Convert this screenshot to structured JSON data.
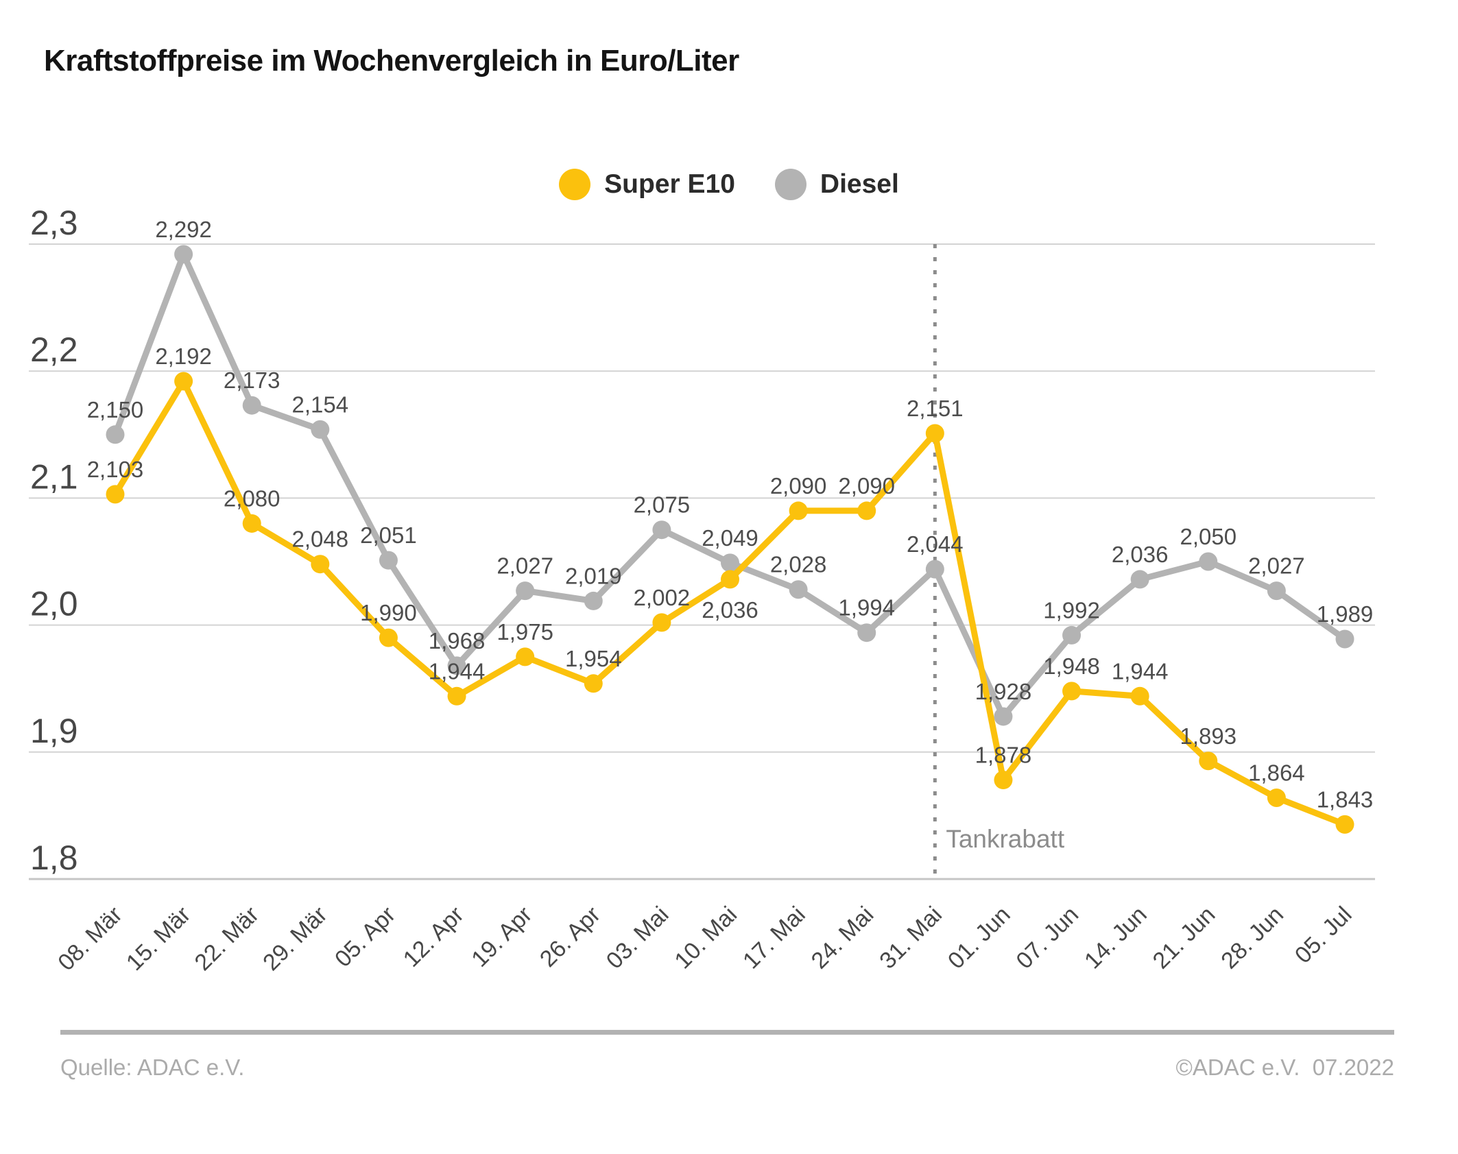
{
  "title": "Kraftstoffpreise im Wochenvergleich in Euro/Liter",
  "legend": {
    "items": [
      {
        "label": "Super E10",
        "color": "#FBC10D"
      },
      {
        "label": "Diesel",
        "color": "#B3B3B3"
      }
    ]
  },
  "annotation": {
    "label": "Tankrabatt",
    "category": "31. Mai",
    "category_index": 12,
    "line_color": "#8C8C8C",
    "label_color": "#8C8C8C"
  },
  "footer": {
    "source": "Quelle: ADAC e.V.",
    "copyright": "©ADAC e.V.  07.2022"
  },
  "chart_data": {
    "type": "line",
    "title": "Kraftstoffpreise im Wochenvergleich in Euro/Liter",
    "unit": "Euro/Liter",
    "grid": true,
    "legend_position": "top-center",
    "ylim": [
      1.8,
      2.3
    ],
    "yticks": [
      {
        "label": "2,3",
        "value": 2.3
      },
      {
        "label": "2,2",
        "value": 2.2
      },
      {
        "label": "2,1",
        "value": 2.1
      },
      {
        "label": "2,0",
        "value": 2.0
      },
      {
        "label": "1,9",
        "value": 1.9
      },
      {
        "label": "1,8",
        "value": 1.8
      }
    ],
    "categories": [
      "08. Mär",
      "15. Mär",
      "22. Mär",
      "29. Mär",
      "05. Apr",
      "12. Apr",
      "19. Apr",
      "26. Apr",
      "03. Mai",
      "10. Mai",
      "17. Mai",
      "24. Mai",
      "31. Mai",
      "01. Jun",
      "07. Jun",
      "14. Jun",
      "21. Jun",
      "28. Jun",
      "05. Jul"
    ],
    "series": [
      {
        "name": "Super E10",
        "color": "#FBC10D",
        "values": [
          2.103,
          2.192,
          2.08,
          2.048,
          1.99,
          1.944,
          1.975,
          1.954,
          2.002,
          2.036,
          2.09,
          2.09,
          2.151,
          1.878,
          1.948,
          1.944,
          1.893,
          1.864,
          1.843
        ],
        "labels": [
          "2,103",
          "2,192",
          "2,080",
          "2,048",
          "1,990",
          "1,944",
          "1,975",
          "1,954",
          "2,002",
          "2,036",
          "2,090",
          "2,090",
          "2,151",
          "1,878",
          "1,948",
          "1,944",
          "1,893",
          "1,864",
          "1,843"
        ],
        "label_below_indexes": [
          9
        ]
      },
      {
        "name": "Diesel",
        "color": "#B3B3B3",
        "values": [
          2.15,
          2.292,
          2.173,
          2.154,
          2.051,
          1.968,
          2.027,
          2.019,
          2.075,
          2.049,
          2.028,
          1.994,
          2.044,
          1.928,
          1.992,
          2.036,
          2.05,
          2.027,
          1.989
        ],
        "labels": [
          "2,150",
          "2,292",
          "2,173",
          "2,154",
          "2,051",
          "1,968",
          "2,027",
          "2,019",
          "2,075",
          "2,049",
          "2,028",
          "1,994",
          "2,044",
          "1,928",
          "1,992",
          "2,036",
          "2,050",
          "2,027",
          "1,989"
        ],
        "label_below_indexes": []
      }
    ],
    "value_label_color": "#4D4D4D",
    "axis_label_color": "#474747",
    "gridline_color": "#D3D3D3",
    "baseline_color": "#C6C6C6"
  }
}
